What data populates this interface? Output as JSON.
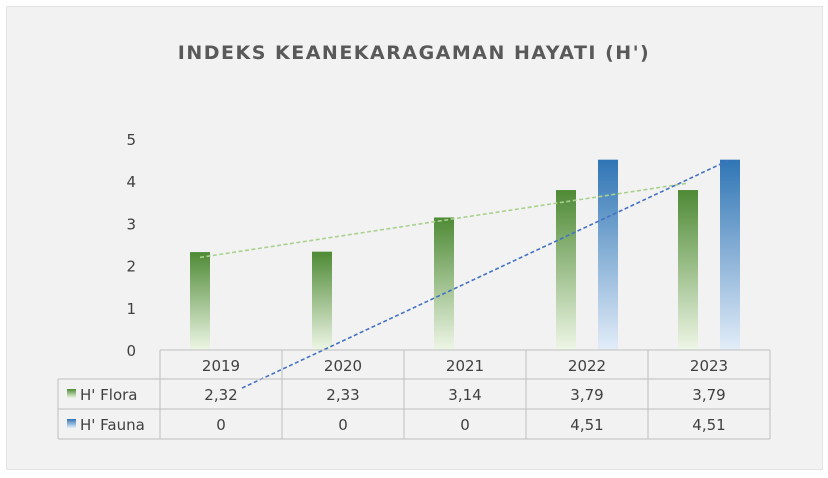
{
  "chart_data": {
    "type": "bar",
    "title": "INDEKS KEANEKARAGAMAN HAYATI (H')",
    "categories": [
      "2019",
      "2020",
      "2021",
      "2022",
      "2023"
    ],
    "series": [
      {
        "name": "H' Flora",
        "values": [
          2.32,
          2.33,
          3.14,
          3.79,
          3.79
        ],
        "labels": [
          "2,32",
          "2,33",
          "3,14",
          "3,79",
          "3,79"
        ],
        "color_top": "#4e8a35",
        "color_bottom": "#eef6e6"
      },
      {
        "name": "H' Fauna",
        "values": [
          0,
          0,
          0,
          4.51,
          4.51
        ],
        "labels": [
          "0",
          "0",
          "0",
          "4,51",
          "4,51"
        ],
        "color_top": "#2f75b5",
        "color_bottom": "#e3edf8"
      }
    ],
    "yticks": [
      "0",
      "1",
      "2",
      "3",
      "4",
      "5"
    ],
    "ylim": [
      0,
      5
    ],
    "trendlines": [
      {
        "series": "H' Flora",
        "type": "linear",
        "color": "#a9d18e"
      },
      {
        "series": "H' Fauna",
        "type": "linear",
        "color": "#4472c4"
      }
    ],
    "data_table": true,
    "gridlines": false
  }
}
